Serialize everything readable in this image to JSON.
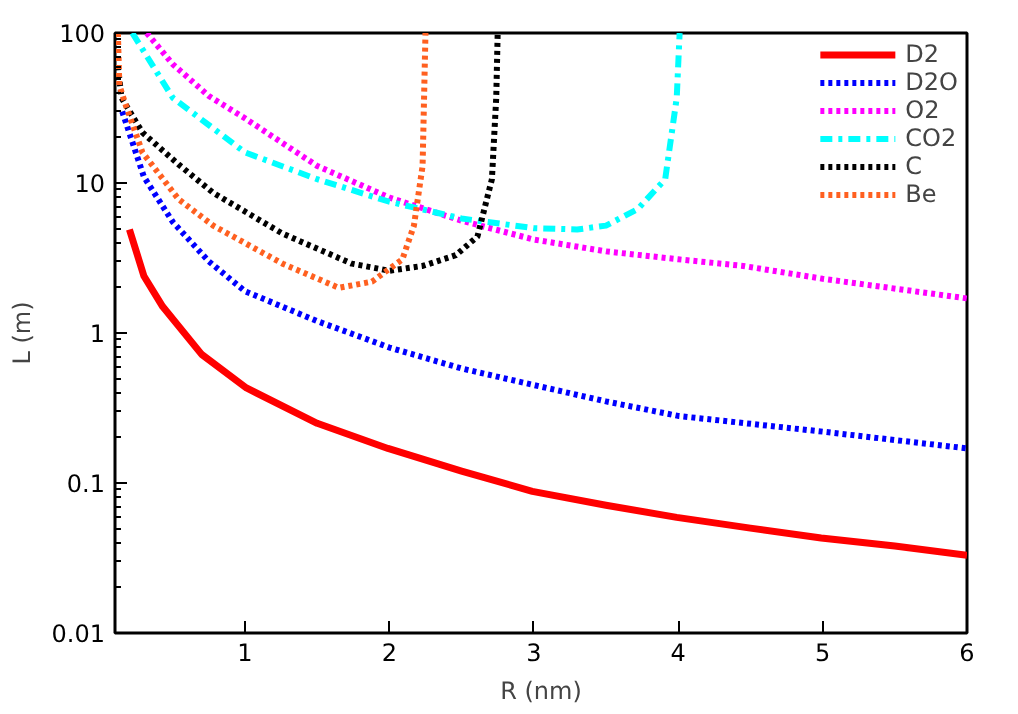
{
  "chart_data": {
    "type": "line",
    "xlabel": "R (nm)",
    "ylabel": "L (m)",
    "log": "y",
    "grid": false,
    "legend": "top right",
    "marker": "none",
    "xlim": [
      0.1,
      6
    ],
    "ylim": [
      0.01,
      100
    ],
    "xticks": [
      1,
      2,
      3,
      4,
      5,
      6
    ],
    "yticks": [
      0.01,
      0.1,
      1,
      10,
      100
    ],
    "series": [
      {
        "name": "D2",
        "color": "#ff0000",
        "line_style": "solid",
        "x": [
          0.2,
          0.3,
          0.43,
          0.7,
          1.01,
          1.5,
          1.99,
          2.5,
          2.99,
          3.5,
          3.99,
          4.5,
          4.99,
          5.5,
          6
        ],
        "values": [
          4.9,
          2.4,
          1.5,
          0.72,
          0.43,
          0.25,
          0.17,
          0.12,
          0.088,
          0.071,
          0.059,
          0.05,
          0.043,
          0.038,
          0.033
        ]
      },
      {
        "name": "D2O",
        "color": "#0000ff",
        "line_style": "dotted",
        "x": [
          0.15,
          0.3,
          0.5,
          0.75,
          1,
          1.5,
          2,
          2.5,
          3,
          3.5,
          4,
          5,
          6
        ],
        "values": [
          30,
          11,
          5.5,
          3,
          1.9,
          1.2,
          0.8,
          0.58,
          0.45,
          0.35,
          0.28,
          0.22,
          0.17
        ]
      },
      {
        "name": "O2",
        "color": "#ff00ff",
        "line_style": "dotted",
        "x": [
          0.32,
          0.5,
          0.75,
          1,
          1.5,
          2,
          2.5,
          3,
          3.5,
          4,
          4.45,
          5,
          6
        ],
        "values": [
          100,
          62,
          38,
          27,
          13,
          8,
          5.6,
          4.2,
          3.5,
          3.1,
          2.8,
          2.3,
          1.7
        ]
      },
      {
        "name": "CO2",
        "color": "#00ffff",
        "line_style": "dashdot",
        "x": [
          0.22,
          0.5,
          1,
          1.5,
          2,
          2.5,
          3,
          3.3,
          3.5,
          3.72,
          3.91,
          3.99,
          4.01
        ],
        "values": [
          100,
          37,
          16,
          10.6,
          7.5,
          5.8,
          5,
          4.9,
          5.2,
          6.7,
          10.6,
          37,
          100
        ]
      },
      {
        "name": "C",
        "color": "#000000",
        "line_style": "dotted",
        "x": [
          0.12,
          0.145,
          0.29,
          0.54,
          0.78,
          1.26,
          1.74,
          2,
          2.23,
          2.46,
          2.61,
          2.71,
          2.74,
          2.75
        ],
        "values": [
          60,
          37,
          21.7,
          13.3,
          8.6,
          4.6,
          2.9,
          2.6,
          2.8,
          3.3,
          4.4,
          10.6,
          37,
          100
        ]
      },
      {
        "name": "Be",
        "color": "#ff6020",
        "line_style": "dotted",
        "x": [
          0.12,
          0.13,
          0.17,
          0.29,
          0.54,
          0.78,
          1.26,
          1.65,
          1.88,
          2.09,
          2.17,
          2.23,
          2.25
        ],
        "values": [
          100,
          45,
          34,
          16,
          7.8,
          5.2,
          2.9,
          2,
          2.2,
          3.1,
          5.2,
          13,
          100
        ]
      }
    ]
  }
}
